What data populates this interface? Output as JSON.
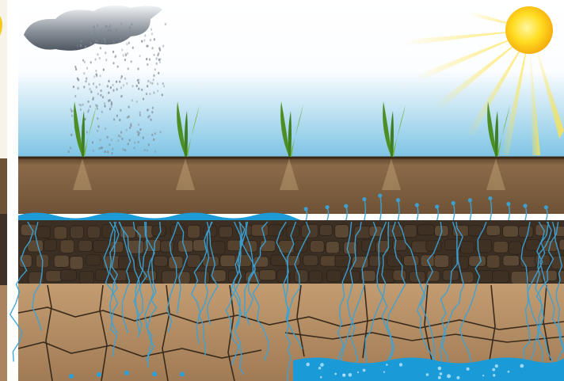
{
  "scene": {
    "type": "illustration",
    "layers": [
      {
        "name": "sky",
        "color": "#ffffff",
        "horizon_color": "#7cc3e4"
      },
      {
        "name": "topsoil",
        "color": "#7a5a3a"
      },
      {
        "name": "rain-water-band",
        "color": "#1d9bd6"
      },
      {
        "name": "dark-soil",
        "color": "#3b2e22"
      },
      {
        "name": "cracked-subsoil",
        "color": "#b08a63"
      },
      {
        "name": "groundwater",
        "color": "#1a9ad6"
      }
    ],
    "elements": [
      "rain-cloud",
      "rain-drops",
      "sun",
      "sun-rays",
      "seedling",
      "water-veins"
    ],
    "accent_colors": {
      "water": "#2a9fd8",
      "sun": "#ffd21a",
      "sprout": "#5fa02f",
      "cloud": "#606a74"
    },
    "seedling_count": 5
  }
}
